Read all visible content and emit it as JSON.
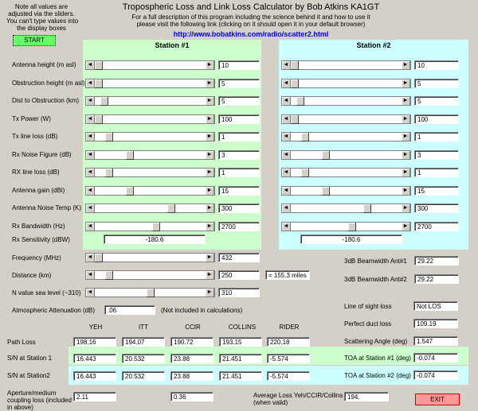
{
  "note_lines": [
    "Note all values are",
    "adjusted via the sliders.",
    "You can't type values into",
    "the display boxes"
  ],
  "start_label": "START",
  "title": "Tropospheric Loss and Link Loss Calculator by Bob Atkins KA1GT",
  "sub1": "For a full description of this program including the science behind it and how to use it",
  "sub2": "please visit the following link (clicking on it should open it in your default browser)",
  "url": "http://www.bobatkins.com/radio/scatter2.html",
  "station1_title": "Station #1",
  "station2_title": "Station #2",
  "colors": {
    "panel1": "#ccffcc",
    "panel2": "#ccffff",
    "exit": "#ff9999",
    "start": "#66ff66",
    "link": "#0000ff"
  },
  "station_rows": [
    {
      "label": "Antenna height (m asl)",
      "s1": "10",
      "s2": "10",
      "p1": 0.0,
      "p2": 0.0
    },
    {
      "label": "Obstruction height (m asl)",
      "s1": "5",
      "s2": "5",
      "p1": 0.0,
      "p2": 0.0
    },
    {
      "label": "Dist to Obstruction (km)",
      "s1": "5",
      "s2": "5",
      "p1": 0.05,
      "p2": 0.05
    },
    {
      "label": "Tx Power (W)",
      "s1": "100",
      "s2": "100",
      "p1": 0.0,
      "p2": 0.0
    },
    {
      "label": "Tx line loss (dB)",
      "s1": "1",
      "s2": "1",
      "p1": 0.1,
      "p2": 0.1
    },
    {
      "label": "Rx Noise Figure (dB)",
      "s1": "3",
      "s2": "3",
      "p1": 0.3,
      "p2": 0.3
    },
    {
      "label": "RX line loss (dB)",
      "s1": "1",
      "s2": "1",
      "p1": 0.1,
      "p2": 0.1
    },
    {
      "label": "Antenna gain (dBi)",
      "s1": "15",
      "s2": "15",
      "p1": 0.3,
      "p2": 0.3
    },
    {
      "label": "Antenna Noise Temp (K)",
      "s1": "300",
      "s2": "300",
      "p1": 0.7,
      "p2": 0.7
    },
    {
      "label": "Rx Bandwidth (Hz)",
      "s1": "2700",
      "s2": "2700",
      "p1": 0.55,
      "p2": 0.55
    }
  ],
  "rx_sens_label": "Rx Sensitivity (dBW)",
  "rx_sens_s1": "-180.6",
  "rx_sens_s2": "-180.6",
  "freq_label": "Frequency (MHz)",
  "freq_value": "432",
  "freq_pos": 0.0,
  "dist_label": "Distance (km)",
  "dist_value": "250",
  "dist_pos": 0.1,
  "dist_miles": "= 155.3 miles",
  "nval_label": "N value sea level (~310)",
  "nval_value": "310",
  "nval_pos": 0.5,
  "atm_label": "Atmospheric Attenuation (dB)",
  "atm_value": ".06",
  "atm_note": "(Not included in calculations)",
  "beam1_label": "3dB Beamwidth Ant#1",
  "beam1_value": "29.22",
  "beam2_label": "3dB Beamwidth Ant#2",
  "beam2_value": "29.22",
  "los_label": "Line of sight loss",
  "los_value": "Not LOS",
  "duct_label": "Perfect duct loss",
  "duct_value": "109.19",
  "scat_label": "Scattering Angle (deg)",
  "scat_value": "1.547",
  "toa1_label": "TOA at Station #1 (deg)",
  "toa1_value": "-0.074",
  "toa2_label": "TOA at Station #2 (deg)",
  "toa2_value": "-0.074",
  "model_headers": [
    "YEH",
    "ITT",
    "CCIR",
    "COLLINS",
    "RIDER"
  ],
  "path_loss_label": "Path Loss",
  "path_loss": [
    "198.16",
    "194.07",
    "190.72",
    "193.15",
    "220.18"
  ],
  "sn1_label": "S/N at Station 1",
  "sn1": [
    "16.443",
    "20.532",
    "23.88",
    "21.451",
    "-5.574"
  ],
  "sn2_label": "S/N at Station2",
  "sn2": [
    "16.443",
    "20.532",
    "23.88",
    "21.451",
    "-5.574"
  ],
  "aperture_label_1": "Aperture/medium",
  "aperture_label_2": "coupling loss (included",
  "aperture_label_3": "in above)",
  "aperture_yeh": "2.11",
  "aperture_ccir": "0.36",
  "avg_label_1": "Average Loss Yeh/CCIR/Collins",
  "avg_label_2": "(when valid)",
  "avg_value": "194.",
  "exit_label": "EXIT"
}
